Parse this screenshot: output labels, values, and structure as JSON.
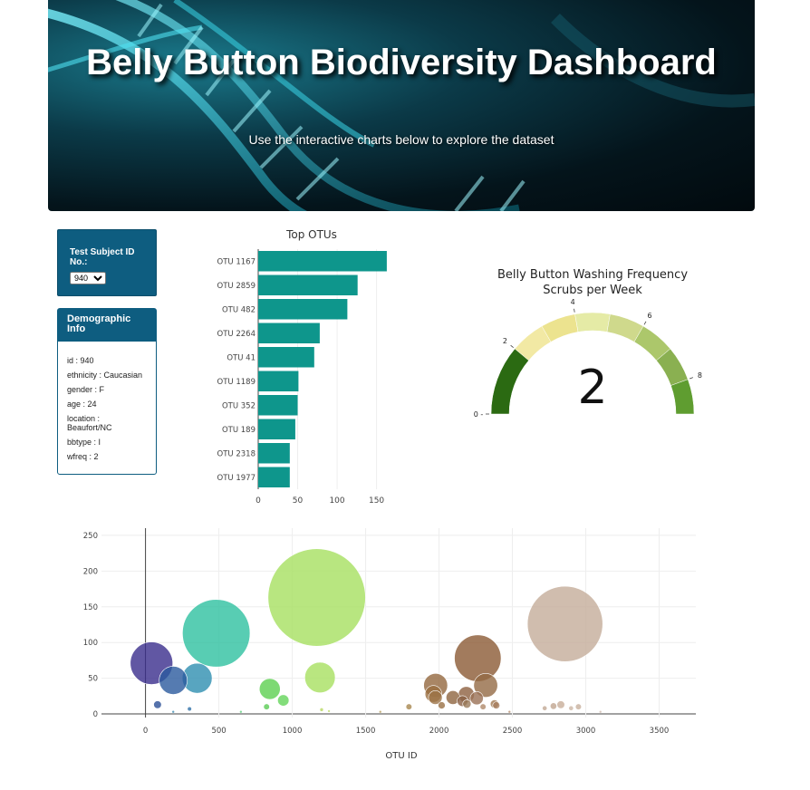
{
  "header": {
    "title": "Belly Button Biodiversity Dashboard",
    "subtitle": "Use the interactive charts below to explore the dataset"
  },
  "selector": {
    "label": "Test Subject ID No.:",
    "selected": "940"
  },
  "demographics": {
    "title": "Demographic Info",
    "rows": [
      "id : 940",
      "ethnicity : Caucasian",
      "gender : F",
      "age : 24",
      "location : Beaufort/NC",
      "bbtype : I",
      "wfreq : 2"
    ]
  },
  "colors": {
    "bar": "#0e968c",
    "panel": "#0e5d80"
  },
  "chart_data": [
    {
      "type": "bar",
      "orientation": "horizontal",
      "title": "Top OTUs",
      "categories": [
        "OTU 1167",
        "OTU 2859",
        "OTU 482",
        "OTU 2264",
        "OTU 41",
        "OTU 1189",
        "OTU 352",
        "OTU 189",
        "OTU 2318",
        "OTU 1977"
      ],
      "values": [
        163,
        126,
        113,
        78,
        71,
        51,
        50,
        47,
        40,
        40
      ],
      "xlim": [
        0,
        170
      ],
      "xticks": [
        0,
        50,
        100,
        150
      ]
    },
    {
      "type": "gauge",
      "title": "Belly Button Washing Frequency",
      "subtitle": "Scrubs per Week",
      "value": 2,
      "range": [
        0,
        9
      ],
      "tick_labels": [
        "0",
        "2",
        "4",
        "6",
        "8"
      ],
      "band_colors": [
        "#fdf7e6",
        "#fbf2d6",
        "#f2e9a4",
        "#ece38f",
        "#e5eba6",
        "#cfd98c",
        "#acc76b",
        "#8ab051",
        "#5f9d30"
      ],
      "value_color": "#2b6a12"
    },
    {
      "type": "scatter",
      "subtype": "bubble",
      "xlabel": "OTU ID",
      "xlim": [
        -300,
        3750
      ],
      "ylim": [
        -5,
        260
      ],
      "xticks": [
        0,
        500,
        1000,
        1500,
        2000,
        2500,
        3000,
        3500
      ],
      "yticks": [
        0,
        50,
        100,
        150,
        200,
        250
      ],
      "points": [
        {
          "x": 41,
          "y": 71,
          "color": "#3a2d8c"
        },
        {
          "x": 189,
          "y": 47,
          "color": "#2a5a9e"
        },
        {
          "x": 352,
          "y": 50,
          "color": "#2e8fb0"
        },
        {
          "x": 482,
          "y": 113,
          "color": "#2ec0a0"
        },
        {
          "x": 1167,
          "y": 163,
          "color": "#a6e060"
        },
        {
          "x": 847,
          "y": 35,
          "color": "#5cd050"
        },
        {
          "x": 939,
          "y": 19,
          "color": "#64d45a"
        },
        {
          "x": 1189,
          "y": 51,
          "color": "#a8e060"
        },
        {
          "x": 2264,
          "y": 78,
          "color": "#8b5a35"
        },
        {
          "x": 2859,
          "y": 126,
          "color": "#c4ad9a"
        },
        {
          "x": 1977,
          "y": 40,
          "color": "#93683f"
        },
        {
          "x": 2318,
          "y": 40,
          "color": "#936a45"
        },
        {
          "x": 1962,
          "y": 28,
          "color": "#9a6e40"
        },
        {
          "x": 2095,
          "y": 23,
          "color": "#8f6540"
        },
        {
          "x": 2186,
          "y": 27,
          "color": "#8d6040"
        },
        {
          "x": 2160,
          "y": 18,
          "color": "#8a6045"
        },
        {
          "x": 1975,
          "y": 23,
          "color": "#9e7448"
        },
        {
          "x": 2257,
          "y": 22,
          "color": "#9a7055"
        },
        {
          "x": 2018,
          "y": 12,
          "color": "#9a7045"
        },
        {
          "x": 2190,
          "y": 14,
          "color": "#9a7a5a"
        },
        {
          "x": 2378,
          "y": 14,
          "color": "#a07850"
        },
        {
          "x": 2390,
          "y": 12,
          "color": "#a88060"
        },
        {
          "x": 2300,
          "y": 10,
          "color": "#b08a6a"
        },
        {
          "x": 1795,
          "y": 10,
          "color": "#a8874f"
        },
        {
          "x": 2780,
          "y": 11,
          "color": "#c0a590"
        },
        {
          "x": 2830,
          "y": 13,
          "color": "#c8ae9a"
        },
        {
          "x": 2950,
          "y": 10,
          "color": "#c8b09e"
        },
        {
          "x": 2900,
          "y": 8,
          "color": "#ccb7a5"
        },
        {
          "x": 2720,
          "y": 8,
          "color": "#c2a995"
        },
        {
          "x": 82,
          "y": 13,
          "color": "#2a4f96"
        },
        {
          "x": 300,
          "y": 7,
          "color": "#3070a8"
        },
        {
          "x": 189,
          "y": 3,
          "color": "#3c8ab0"
        },
        {
          "x": 825,
          "y": 10,
          "color": "#5acc55"
        },
        {
          "x": 1200,
          "y": 6,
          "color": "#b8d860"
        },
        {
          "x": 1250,
          "y": 4,
          "color": "#c2dc70"
        },
        {
          "x": 650,
          "y": 3,
          "color": "#60d080"
        },
        {
          "x": 1600,
          "y": 3,
          "color": "#b8a060"
        },
        {
          "x": 2480,
          "y": 3,
          "color": "#b89070"
        },
        {
          "x": 3100,
          "y": 3,
          "color": "#d0bcb0"
        }
      ]
    }
  ]
}
